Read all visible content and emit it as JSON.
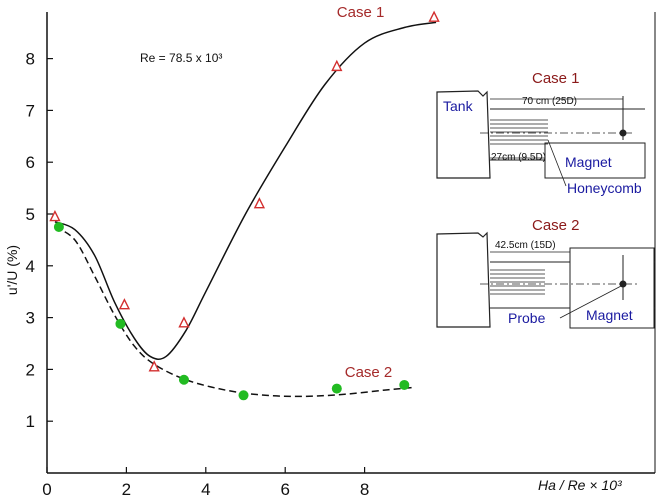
{
  "chart_data": {
    "type": "line",
    "title": "",
    "xlabel": "Ha / Re × 10³",
    "ylabel": "u'/U (%)",
    "xlim": [
      0,
      11
    ],
    "ylim": [
      0,
      9
    ],
    "x_ticks": [
      "0",
      "2",
      "4",
      "6",
      "8"
    ],
    "y_ticks": [
      "1",
      "2",
      "3",
      "4",
      "5",
      "6",
      "7",
      "8"
    ],
    "annotation": "Re = 78.5 x 10³",
    "grid": false,
    "series": [
      {
        "name": "Case 1",
        "marker": "triangle",
        "color": "#d32f2f",
        "points": [
          [
            0.2,
            4.95
          ],
          [
            1.95,
            3.25
          ],
          [
            2.7,
            2.05
          ],
          [
            3.45,
            2.9
          ],
          [
            5.35,
            5.2
          ],
          [
            7.3,
            7.85
          ],
          [
            9.75,
            8.8
          ]
        ],
        "curve": [
          [
            0.2,
            4.85
          ],
          [
            0.7,
            4.7
          ],
          [
            1.2,
            4.2
          ],
          [
            1.7,
            3.3
          ],
          [
            2.2,
            2.6
          ],
          [
            2.6,
            2.25
          ],
          [
            3.0,
            2.25
          ],
          [
            3.5,
            2.75
          ],
          [
            4.0,
            3.5
          ],
          [
            5.0,
            5.0
          ],
          [
            6.0,
            6.3
          ],
          [
            7.0,
            7.5
          ],
          [
            8.0,
            8.3
          ],
          [
            9.0,
            8.6
          ],
          [
            9.8,
            8.7
          ]
        ]
      },
      {
        "name": "Case 2",
        "marker": "circle",
        "color": "#22bb22",
        "points": [
          [
            0.3,
            4.75
          ],
          [
            1.85,
            2.88
          ],
          [
            3.45,
            1.8
          ],
          [
            4.95,
            1.5
          ],
          [
            7.3,
            1.63
          ],
          [
            9.0,
            1.7
          ]
        ],
        "curve": [
          [
            0.2,
            4.75
          ],
          [
            0.7,
            4.5
          ],
          [
            1.2,
            3.8
          ],
          [
            1.7,
            3.05
          ],
          [
            2.2,
            2.45
          ],
          [
            2.7,
            2.1
          ],
          [
            3.5,
            1.8
          ],
          [
            4.5,
            1.6
          ],
          [
            5.5,
            1.5
          ],
          [
            6.5,
            1.48
          ],
          [
            7.5,
            1.52
          ],
          [
            8.5,
            1.6
          ],
          [
            9.2,
            1.65
          ]
        ]
      }
    ],
    "series_labels": [
      {
        "text": "Case 1",
        "x": 7.3,
        "y": 8.8
      },
      {
        "text": "Case 2",
        "x": 7.5,
        "y": 1.85
      }
    ]
  },
  "insets": {
    "case1": {
      "title": "Case 1",
      "tank": "Tank",
      "dim_top": "70 cm (25D)",
      "dim_bottom": "27cm (9.5D)",
      "magnet": "Magnet",
      "honeycomb": "Honeycomb"
    },
    "case2": {
      "title": "Case 2",
      "dim_top": "42.5cm (15D)",
      "probe": "Probe",
      "magnet": "Magnet"
    }
  }
}
